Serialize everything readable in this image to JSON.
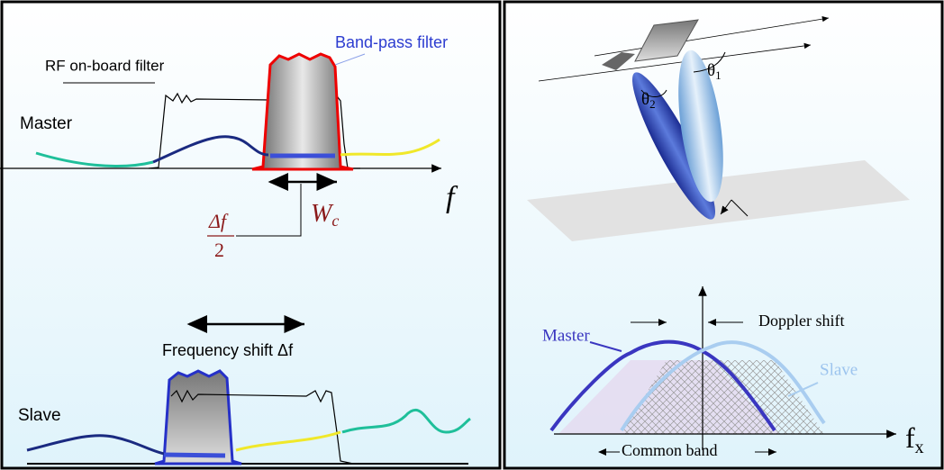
{
  "left_panel": {
    "rf_filter_label": "RF on-board filter",
    "band_pass_label": "Band-pass filter",
    "master_label": "Master",
    "f_label": "f",
    "half_shift": {
      "numerator": "Δf",
      "denominator": "2"
    },
    "wc": {
      "base": "W",
      "sub": "c"
    },
    "frequency_shift_label": "Frequency shift Δf",
    "slave_label": "Slave"
  },
  "right_panel": {
    "theta1": {
      "base": "θ",
      "sub": "1"
    },
    "theta2": {
      "base": "θ",
      "sub": "2"
    },
    "master_label": "Master",
    "doppler_label": "Doppler shift",
    "slave_label": "Slave",
    "fx": {
      "base": "f",
      "sub": "x"
    },
    "common_band_label": "Common band"
  }
}
